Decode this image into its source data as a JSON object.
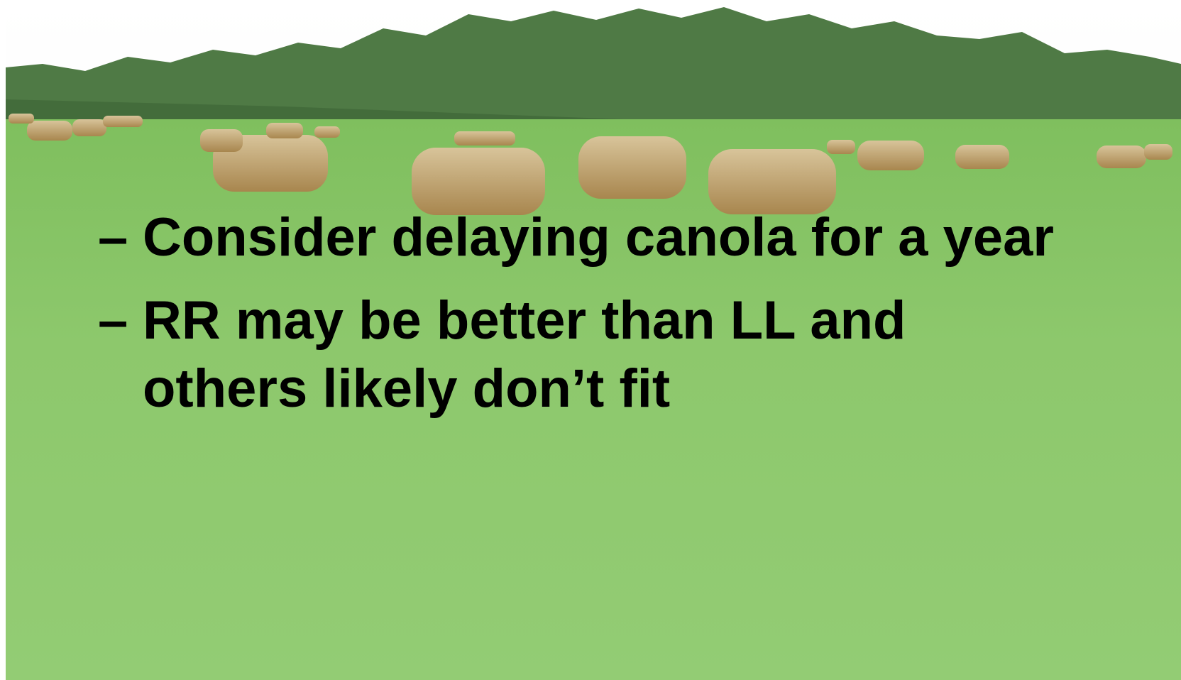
{
  "slide": {
    "bullets": [
      {
        "marker": "–",
        "lines": [
          "Consider delaying canola for a year"
        ]
      },
      {
        "marker": "–",
        "lines": [
          "RR may be better than LL and",
          "others likely don’t fit"
        ]
      }
    ]
  }
}
